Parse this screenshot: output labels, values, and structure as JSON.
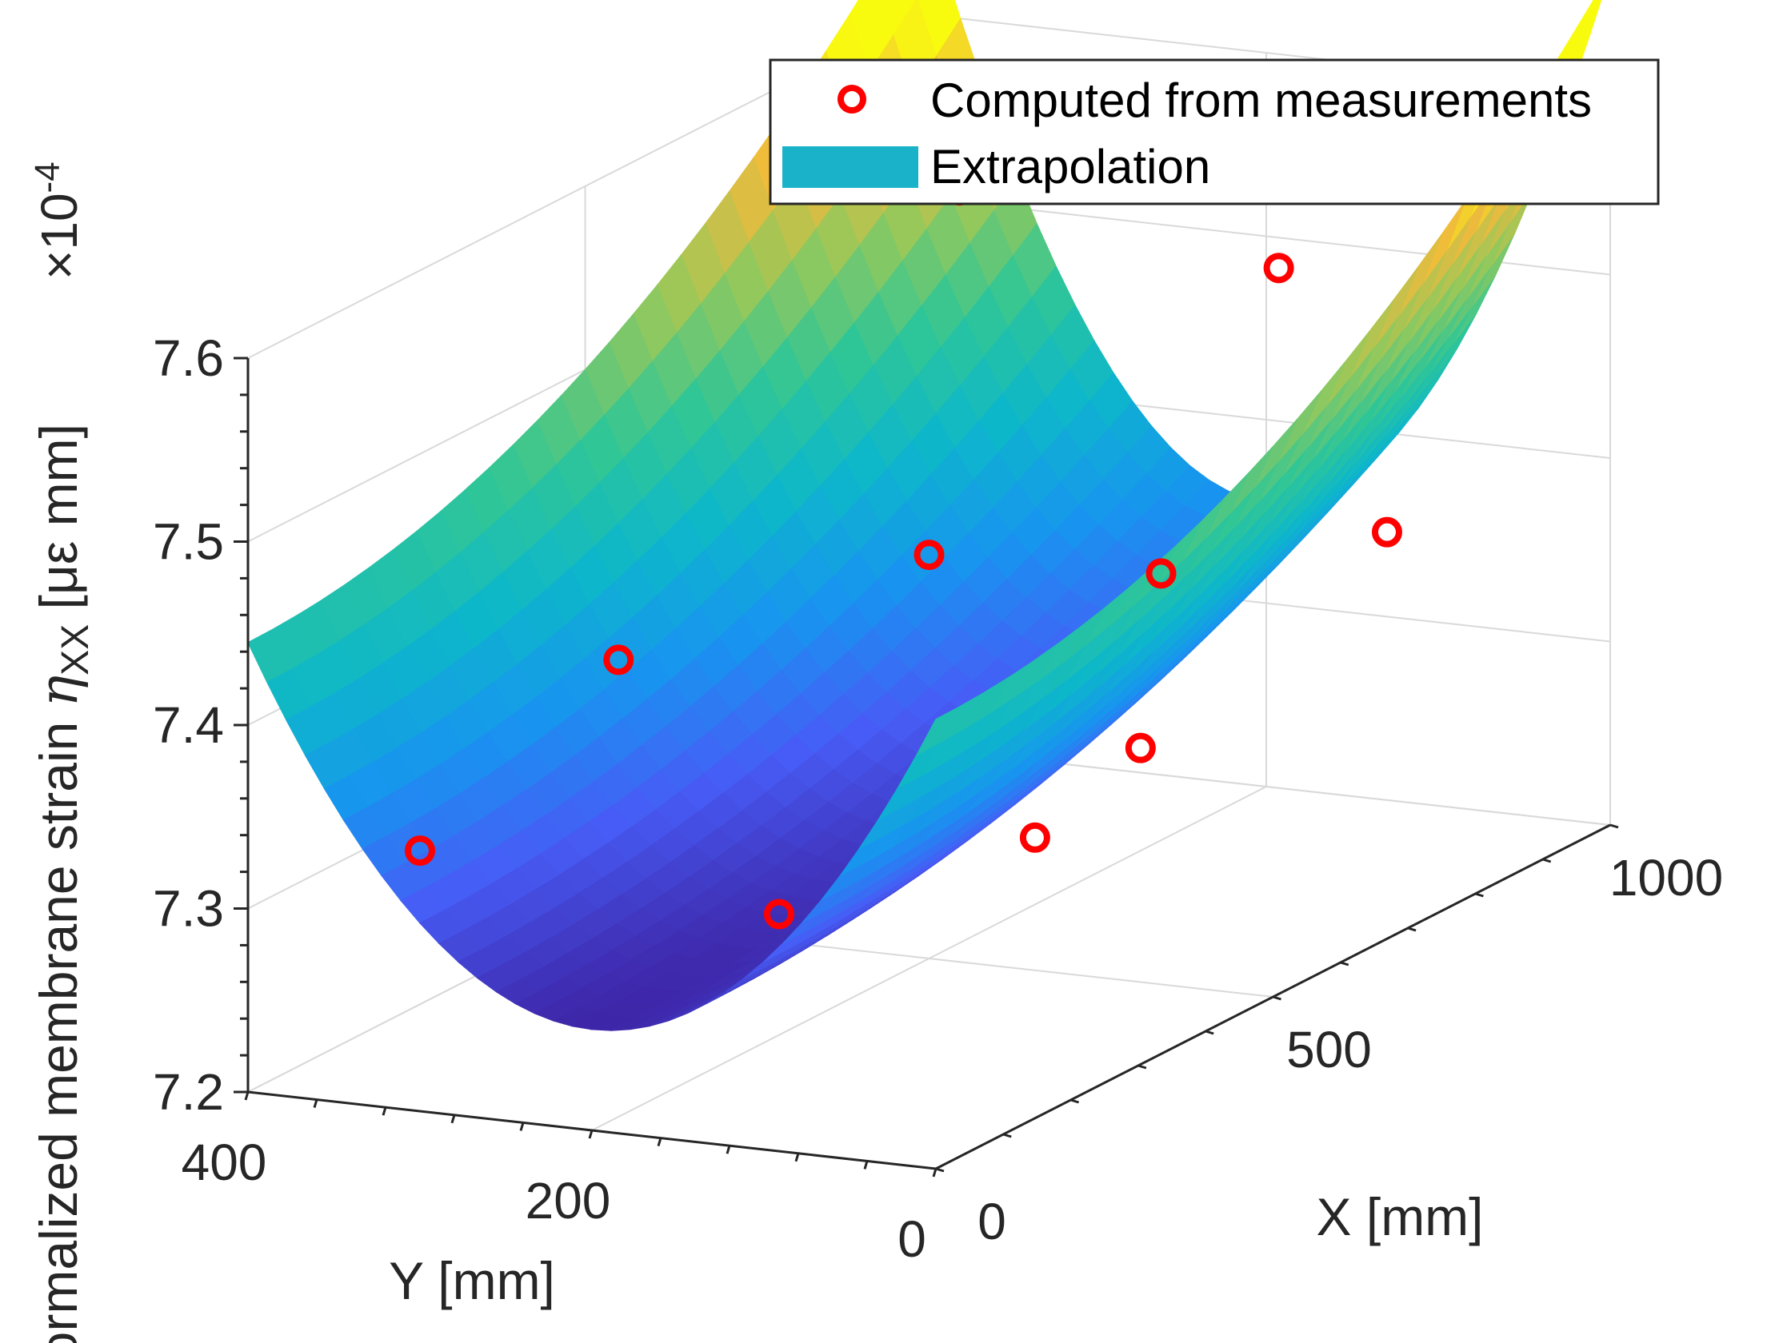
{
  "chart_data": {
    "type": "surface3d",
    "title": "",
    "xlabel": "X [mm]",
    "ylabel": "Y [mm]",
    "zlabel_prefix": "Normalized membrane strain ",
    "zlabel_symbol": "η",
    "zlabel_subscript": "XX",
    "zlabel_unit": " [με mm]",
    "z_exponent_prefix": "×10",
    "z_exponent_power": "-4",
    "xlim": [
      0,
      1000
    ],
    "ylim": [
      0,
      400
    ],
    "zlim": [
      7.2,
      7.6
    ],
    "x_ticks": [
      0,
      500,
      1000
    ],
    "x_tick_labels": [
      "0",
      "500",
      "1000"
    ],
    "y_ticks": [
      400,
      200,
      0
    ],
    "y_tick_labels": [
      "400",
      "200",
      "0"
    ],
    "z_ticks": [
      7.2,
      7.3,
      7.4,
      7.5,
      7.6
    ],
    "z_tick_labels": [
      "7.2",
      "7.3",
      "7.4",
      "7.5",
      "7.6"
    ],
    "grid": true,
    "legend_position": "top-right",
    "series": [
      {
        "name": "Computed from measurements",
        "type": "scatter3d",
        "color": "#ff0000",
        "points": [
          {
            "x": 0,
            "y": 300,
            "z": 7.342
          },
          {
            "x": 150,
            "y": 150,
            "z": 7.295
          },
          {
            "x": 300,
            "y": 60,
            "z": 7.318
          },
          {
            "x": 320,
            "y": 310,
            "z": 7.385
          },
          {
            "x": 500,
            "y": 200,
            "z": 7.42
          },
          {
            "x": 380,
            "y": 30,
            "z": 7.355
          },
          {
            "x": 640,
            "y": 120,
            "z": 7.392
          },
          {
            "x": 720,
            "y": 20,
            "z": 7.41
          },
          {
            "x": 800,
            "y": 300,
            "z": 7.552
          },
          {
            "x": 840,
            "y": 130,
            "z": 7.52
          },
          {
            "x": 1000,
            "y": 170,
            "z": 7.54
          }
        ]
      },
      {
        "name": "Extrapolation",
        "type": "surface",
        "colormap": "parula",
        "legend_color": "#1ab2c9",
        "x_range": [
          0,
          1000
        ],
        "y_range": [
          0,
          400
        ],
        "model": "z = 7.255 + 0.19*((y - 200)/200)^2 + 0.10*(x/1000)^2 + 0.12*((x/1000)*((y-200)/200))^2"
      }
    ]
  },
  "legend": {
    "items": [
      {
        "label": "Computed from measurements",
        "marker": "circle-outline",
        "color": "#ff0000"
      },
      {
        "label": "Extrapolation",
        "marker": "patch",
        "color": "#1ab2c9"
      }
    ]
  }
}
